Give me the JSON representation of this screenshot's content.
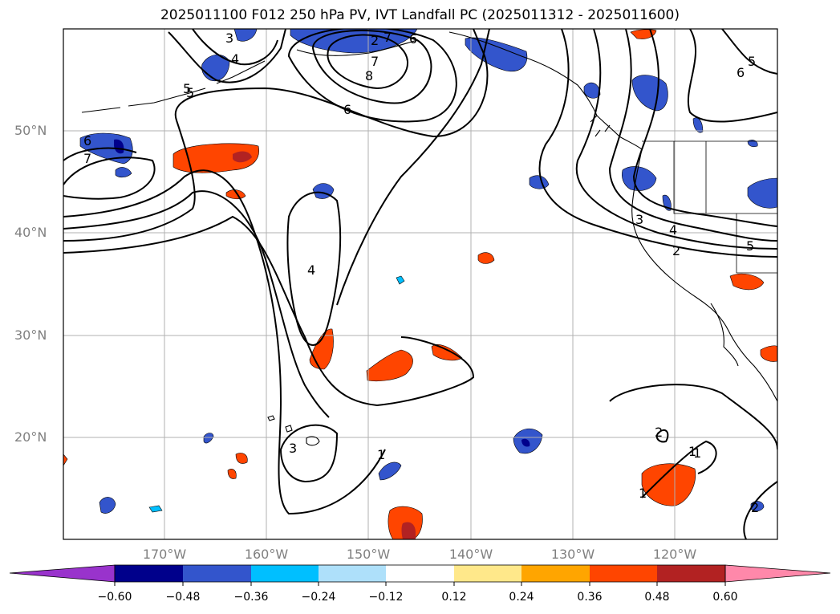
{
  "title": "2025011100 F012 250 hPa PV, IVT Landfall PC (2025011312 - 2025011600)",
  "lat_labels": [
    "50°N",
    "40°N",
    "30°N",
    "20°N"
  ],
  "lon_labels": [
    "170°W",
    "160°W",
    "150°W",
    "140°W",
    "130°W",
    "120°W"
  ],
  "colorbar": {
    "tick_labels": [
      "−0.60",
      "−0.48",
      "−0.36",
      "−0.24",
      "−0.12",
      "0.12",
      "0.24",
      "0.36",
      "0.48",
      "0.60"
    ],
    "bins": [
      {
        "range": "< -0.60",
        "color": "#9933cc"
      },
      {
        "range": "-0.60 to -0.48",
        "color": "#00008b"
      },
      {
        "range": "-0.48 to -0.36",
        "color": "#3355cc"
      },
      {
        "range": "-0.36 to -0.24",
        "color": "#00bfff"
      },
      {
        "range": "-0.24 to -0.12",
        "color": "#aee0fa"
      },
      {
        "range": "-0.12 to 0.12",
        "color": "#ffffff"
      },
      {
        "range": "0.12 to 0.24",
        "color": "#ffe88a"
      },
      {
        "range": "0.24 to 0.36",
        "color": "#ffa500"
      },
      {
        "range": "0.36 to 0.48",
        "color": "#ff4500"
      },
      {
        "range": "0.48 to 0.60",
        "color": "#b22222"
      },
      {
        "range": "> 0.60",
        "color": "#ff88aa"
      }
    ]
  },
  "contour_labels": [
    "3",
    "4",
    "5",
    "6",
    "7",
    "8",
    "7",
    "6",
    "5",
    "6",
    "7",
    "4",
    "3",
    "1",
    "2",
    "1",
    "1",
    "2",
    "3",
    "4",
    "5",
    "6",
    "5",
    "2",
    "2",
    "1"
  ],
  "map_data": {
    "lon_range": [
      -180,
      -110
    ],
    "lat_range": [
      10,
      60
    ],
    "grid": true,
    "field_shaded": "IVT Landfall PC",
    "field_contour": "250 hPa PV"
  }
}
